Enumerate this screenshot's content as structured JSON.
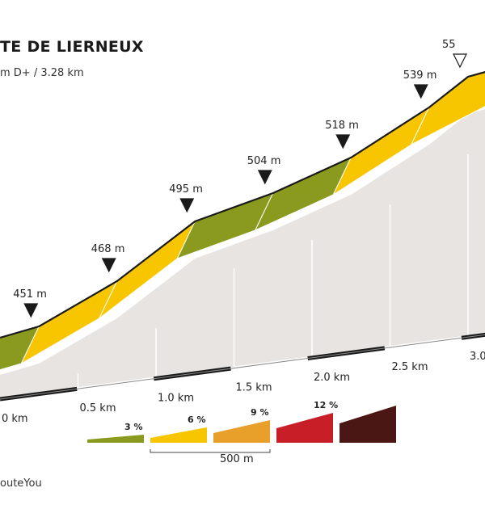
{
  "header": {
    "title": "TE DE LIERNEUX",
    "subtitle": "m D+ / 3.28 km"
  },
  "chart_data": {
    "type": "area",
    "title": "TE DE LIERNEUX",
    "subtitle": "m D+ / 3.28 km",
    "x_unit": "km",
    "y_unit": "m",
    "xlim": [
      0,
      3.28
    ],
    "grid": true,
    "segments": [
      {
        "from_km": 0.0,
        "to_km": 0.25,
        "gradient_pct": 3,
        "color": "#8a9a1e"
      },
      {
        "from_km": 0.25,
        "to_km": 0.75,
        "gradient_pct": 6,
        "color": "#f7c600"
      },
      {
        "from_km": 0.75,
        "to_km": 1.25,
        "gradient_pct": 6,
        "color": "#f7c600"
      },
      {
        "from_km": 1.25,
        "to_km": 1.75,
        "gradient_pct": 3,
        "color": "#8a9a1e"
      },
      {
        "from_km": 1.75,
        "to_km": 2.25,
        "gradient_pct": 3,
        "color": "#8a9a1e"
      },
      {
        "from_km": 2.25,
        "to_km": 2.75,
        "gradient_pct": 6,
        "color": "#f7c600"
      },
      {
        "from_km": 2.75,
        "to_km": 3.28,
        "gradient_pct": 6,
        "color": "#f7c600"
      }
    ],
    "markers": [
      {
        "km": 0.25,
        "elevation_m": 451,
        "label": "451 m",
        "type": "filled"
      },
      {
        "km": 0.75,
        "elevation_m": 468,
        "label": "468 m",
        "type": "filled"
      },
      {
        "km": 1.25,
        "elevation_m": 495,
        "label": "495 m",
        "type": "filled"
      },
      {
        "km": 1.75,
        "elevation_m": 504,
        "label": "504 m",
        "type": "filled"
      },
      {
        "km": 2.25,
        "elevation_m": 518,
        "label": "518 m",
        "type": "filled"
      },
      {
        "km": 2.75,
        "elevation_m": 539,
        "label": "539 m",
        "type": "filled"
      },
      {
        "km": 3.0,
        "elevation_m": 55,
        "label": "55",
        "type": "summit"
      }
    ],
    "x_ticks": [
      {
        "km": 0,
        "label": "0 km"
      },
      {
        "km": 0.5,
        "label": "0.5 km"
      },
      {
        "km": 1.0,
        "label": "1.0 km"
      },
      {
        "km": 1.5,
        "label": "1.5 km"
      },
      {
        "km": 2.0,
        "label": "2.0 km"
      },
      {
        "km": 2.5,
        "label": "2.5 km"
      },
      {
        "km": 3.0,
        "label": "3.0"
      }
    ]
  },
  "legend": {
    "items": [
      {
        "label": "3 %",
        "color": "#8a9a1e"
      },
      {
        "label": "6 %",
        "color": "#f7c600"
      },
      {
        "label": "9 %",
        "color": "#e8a02a"
      },
      {
        "label": "12 %",
        "color": "#c81e28"
      },
      {
        "label": "",
        "color": "#4a1714"
      }
    ],
    "scale_label": "500 m"
  },
  "credit": "outeYou"
}
